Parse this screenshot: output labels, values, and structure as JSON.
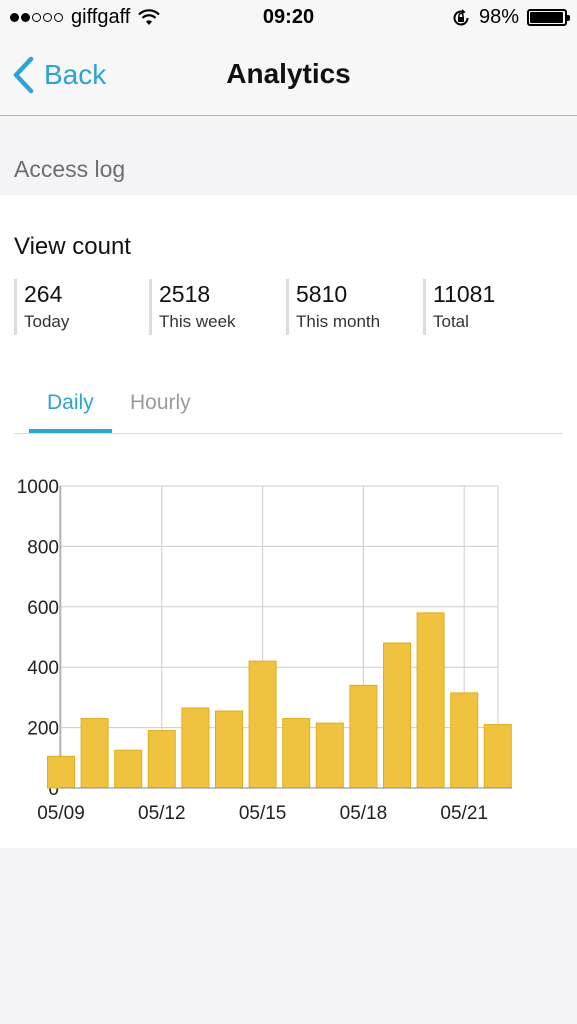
{
  "status_bar": {
    "carrier": "giffgaff",
    "time": "09:20",
    "battery": "98%",
    "battery_level": 0.98,
    "signal_bars": 2,
    "icons": [
      "signal-dots-icon",
      "wifi-icon",
      "rotation-lock-icon",
      "battery-icon"
    ]
  },
  "nav": {
    "back_label": "Back",
    "title": "Analytics",
    "accent": "#2da2d3"
  },
  "section": {
    "title": "Access log"
  },
  "view_count": {
    "title": "View count",
    "stats": [
      {
        "value": "264",
        "label": "Today"
      },
      {
        "value": "2518",
        "label": "This week"
      },
      {
        "value": "5810",
        "label": "This month"
      },
      {
        "value": "11081",
        "label": "Total"
      }
    ]
  },
  "tabs": {
    "daily": "Daily",
    "hourly": "Hourly",
    "selected": "Daily"
  },
  "chart_data": {
    "type": "bar",
    "categories": [
      "05/09",
      "05/10",
      "05/11",
      "05/12",
      "05/13",
      "05/14",
      "05/15",
      "05/16",
      "05/17",
      "05/18",
      "05/19",
      "05/20",
      "05/21",
      "05/22"
    ],
    "x_tick_labels": [
      "05/09",
      "05/12",
      "05/15",
      "05/18",
      "05/21"
    ],
    "values": [
      105,
      230,
      125,
      190,
      265,
      255,
      420,
      230,
      215,
      340,
      480,
      580,
      315,
      210
    ],
    "ylim": [
      0,
      1000
    ],
    "yticks": [
      0,
      200,
      400,
      600,
      800,
      1000
    ],
    "grid": true,
    "bar_color": "#efc23f",
    "bar_edge_color": "#e0ad1f",
    "grid_color": "#cccccc"
  }
}
